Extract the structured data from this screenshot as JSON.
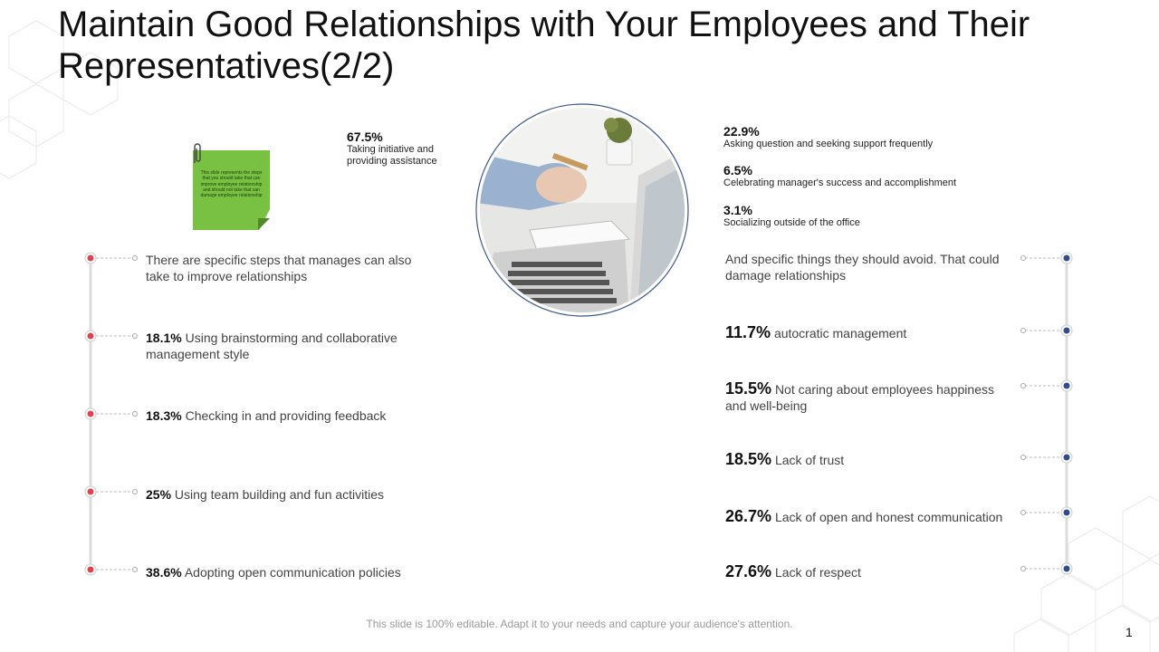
{
  "title": "Maintain Good Relationships with Your Employees and Their Representatives(2/2)",
  "note": {
    "text": "This slide represents the steps that you should take that can improve employee relationship and should not take that can damage employee relationship"
  },
  "top_left_stat": {
    "pct": "67.5%",
    "desc": "Taking initiative and providing assistance"
  },
  "top_right_stats": [
    {
      "pct": "22.9%",
      "desc": "Asking question and seeking support frequently"
    },
    {
      "pct": "6.5%",
      "desc": "Celebrating manager's success and accomplishment"
    },
    {
      "pct": "3.1%",
      "desc": "Socializing outside of the office"
    }
  ],
  "left_intro": "There are specific steps that manages can also take to improve relationships",
  "left_items": [
    {
      "pct": "18.1%",
      "text": "Using brainstorming and collaborative management style"
    },
    {
      "pct": "18.3%",
      "text": "Checking in and providing feedback"
    },
    {
      "pct": "25%",
      "text": "Using team building and fun activities"
    },
    {
      "pct": "38.6%",
      "text": "Adopting open communication policies"
    }
  ],
  "right_intro": "And specific things they should avoid. That could damage relationships",
  "right_items": [
    {
      "pct": "11.7%",
      "text": "autocratic management"
    },
    {
      "pct": "15.5%",
      "text": "Not caring about employees happiness and well-being"
    },
    {
      "pct": "18.5%",
      "text": "Lack of trust"
    },
    {
      "pct": "26.7%",
      "text": "Lack of open and honest communication"
    },
    {
      "pct": "27.6%",
      "text": "Lack of respect"
    }
  ],
  "footer": "This slide is 100% editable. Adapt it to your needs and capture your audience's attention.",
  "page_number": "1",
  "colors": {
    "left_dot": "#e0424f",
    "right_dot": "#2f4f86",
    "note": "#79c142"
  },
  "icons": {
    "clip": "paperclip-icon",
    "photo": "laptop-desk-photo"
  }
}
